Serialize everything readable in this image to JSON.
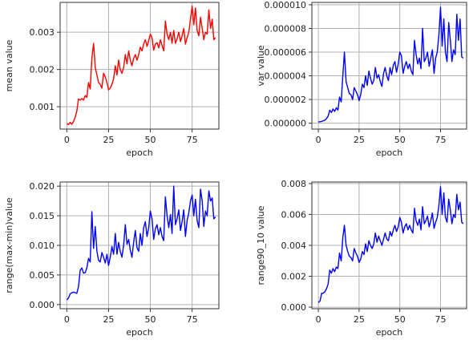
{
  "chart_data": [
    {
      "type": "line",
      "xlabel": "epoch",
      "ylabel": "mean value",
      "xlim": [
        -4,
        91
      ],
      "ylim": [
        0.0004,
        0.0038
      ],
      "xticks": [
        0,
        25,
        50,
        75
      ],
      "yticks": [
        0.001,
        0.002,
        0.003
      ],
      "ytick_labels": [
        "0.001",
        "0.002",
        "0.003"
      ],
      "grid": true,
      "color": "#ff0000",
      "series": [
        {
          "x": [
            0,
            1,
            2,
            3,
            4,
            5,
            6,
            7,
            8,
            9,
            10,
            11,
            12,
            13,
            14,
            15,
            16,
            17,
            18,
            19,
            20,
            21,
            22,
            23,
            24,
            25,
            26,
            27,
            28,
            29,
            30,
            31,
            32,
            33,
            34,
            35,
            36,
            37,
            38,
            39,
            40,
            41,
            42,
            43,
            44,
            45,
            46,
            47,
            48,
            49,
            50,
            51,
            52,
            53,
            54,
            55,
            56,
            57,
            58,
            59,
            60,
            61,
            62,
            63,
            64,
            65,
            66,
            67,
            68,
            69,
            70,
            71,
            72,
            73,
            74,
            75,
            76,
            77,
            78,
            79,
            80,
            81,
            82,
            83,
            84,
            85,
            86,
            87,
            88,
            89
          ],
          "values": [
            0.00055,
            0.00052,
            0.00058,
            0.00053,
            0.0006,
            0.00072,
            0.00088,
            0.00121,
            0.00118,
            0.00122,
            0.00118,
            0.0013,
            0.00125,
            0.00165,
            0.00148,
            0.0023,
            0.0027,
            0.00205,
            0.00185,
            0.00165,
            0.0016,
            0.0015,
            0.0019,
            0.0018,
            0.00165,
            0.00145,
            0.0015,
            0.0016,
            0.00175,
            0.0021,
            0.00185,
            0.00225,
            0.002,
            0.0019,
            0.00205,
            0.0024,
            0.00215,
            0.0025,
            0.00225,
            0.0021,
            0.0023,
            0.0024,
            0.00225,
            0.0024,
            0.0026,
            0.0025,
            0.00268,
            0.0028,
            0.00262,
            0.00278,
            0.00295,
            0.00285,
            0.00252,
            0.00268,
            0.00272,
            0.00258,
            0.0028,
            0.00265,
            0.0025,
            0.0033,
            0.00295,
            0.0028,
            0.003,
            0.0027,
            0.00305,
            0.0027,
            0.00282,
            0.003,
            0.00275,
            0.0029,
            0.0031,
            0.00268,
            0.00285,
            0.003,
            0.00335,
            0.0037,
            0.0032,
            0.00365,
            0.00305,
            0.0029,
            0.0034,
            0.0031,
            0.0028,
            0.003,
            0.00295,
            0.0036,
            0.0031,
            0.00335,
            0.0028,
            0.00285
          ]
        }
      ]
    },
    {
      "type": "line",
      "xlabel": "epoch",
      "ylabel": "var value",
      "xlim": [
        -4,
        91
      ],
      "ylim": [
        -5e-07,
        1.02e-05
      ],
      "xticks": [
        0,
        25,
        50,
        75
      ],
      "yticks": [
        0.0,
        2e-06,
        4e-06,
        6e-06,
        8e-06,
        1e-05
      ],
      "ytick_labels": [
        "0.000000",
        "0.000002",
        "0.000004",
        "0.000006",
        "0.000008",
        "0.000010"
      ],
      "grid": true,
      "color": "#0000ff",
      "series": [
        {
          "x": [
            0,
            1,
            2,
            3,
            4,
            5,
            6,
            7,
            8,
            9,
            10,
            11,
            12,
            13,
            14,
            15,
            16,
            17,
            18,
            19,
            20,
            21,
            22,
            23,
            24,
            25,
            26,
            27,
            28,
            29,
            30,
            31,
            32,
            33,
            34,
            35,
            36,
            37,
            38,
            39,
            40,
            41,
            42,
            43,
            44,
            45,
            46,
            47,
            48,
            49,
            50,
            51,
            52,
            53,
            54,
            55,
            56,
            57,
            58,
            59,
            60,
            61,
            62,
            63,
            64,
            65,
            66,
            67,
            68,
            69,
            70,
            71,
            72,
            73,
            74,
            75,
            76,
            77,
            78,
            79,
            80,
            81,
            82,
            83,
            84,
            85,
            86,
            87,
            88,
            89
          ],
          "values": [
            1e-07,
            1.2e-07,
            1.5e-07,
            2e-07,
            2.5e-07,
            4e-07,
            6e-07,
            1.1e-06,
            9e-07,
            1.2e-06,
            1e-06,
            1.3e-06,
            1.1e-06,
            2.2e-06,
            1.8e-06,
            4e-06,
            6e-06,
            3.5e-06,
            3e-06,
            2.5e-06,
            2.4e-06,
            2e-06,
            3e-06,
            2.7e-06,
            2.4e-06,
            1.9e-06,
            2.4e-06,
            3.3e-06,
            3e-06,
            4e-06,
            3.2e-06,
            4.4e-06,
            3.8e-06,
            3.3e-06,
            3.6e-06,
            4.7e-06,
            3.8e-06,
            4.1e-06,
            3.5e-06,
            3.1e-06,
            4.2e-06,
            4.7e-06,
            4e-06,
            3.6e-06,
            4.7e-06,
            4.1e-06,
            4.9e-06,
            5.2e-06,
            4.3e-06,
            5e-06,
            6e-06,
            5.7e-06,
            4.2e-06,
            4.8e-06,
            5.2e-06,
            4.6e-06,
            5e-06,
            4.4e-06,
            4.1e-06,
            7e-06,
            5.8e-06,
            5e-06,
            5.5e-06,
            4.6e-06,
            8e-06,
            5.2e-06,
            5.5e-06,
            6e-06,
            4.8e-06,
            5.5e-06,
            6.2e-06,
            4.2e-06,
            5.5e-06,
            6e-06,
            7.5e-06,
            9.8e-06,
            6.5e-06,
            8.8e-06,
            6e-06,
            5.2e-06,
            8.5e-06,
            7e-06,
            5.2e-06,
            6.2e-06,
            5.8e-06,
            9.2e-06,
            7e-06,
            8.8e-06,
            5.6e-06,
            5.5e-06
          ]
        }
      ]
    },
    {
      "type": "line",
      "xlabel": "epoch",
      "ylabel": "range(max-min)value",
      "xlim": [
        -4,
        91
      ],
      "ylim": [
        -0.0007,
        0.0207
      ],
      "xticks": [
        0,
        25,
        50,
        75
      ],
      "yticks": [
        0.0,
        0.005,
        0.01,
        0.015,
        0.02
      ],
      "ytick_labels": [
        "0.000",
        "0.005",
        "0.010",
        "0.015",
        "0.020"
      ],
      "grid": true,
      "color": "#0000ff",
      "series": [
        {
          "x": [
            0,
            1,
            2,
            3,
            4,
            5,
            6,
            7,
            8,
            9,
            10,
            11,
            12,
            13,
            14,
            15,
            16,
            17,
            18,
            19,
            20,
            21,
            22,
            23,
            24,
            25,
            26,
            27,
            28,
            29,
            30,
            31,
            32,
            33,
            34,
            35,
            36,
            37,
            38,
            39,
            40,
            41,
            42,
            43,
            44,
            45,
            46,
            47,
            48,
            49,
            50,
            51,
            52,
            53,
            54,
            55,
            56,
            57,
            58,
            59,
            60,
            61,
            62,
            63,
            64,
            65,
            66,
            67,
            68,
            69,
            70,
            71,
            72,
            73,
            74,
            75,
            76,
            77,
            78,
            79,
            80,
            81,
            82,
            83,
            84,
            85,
            86,
            87,
            88,
            89
          ],
          "values": [
            0.0008,
            0.0011,
            0.0018,
            0.002,
            0.0021,
            0.002,
            0.0019,
            0.003,
            0.0058,
            0.0062,
            0.0053,
            0.0054,
            0.0062,
            0.0078,
            0.0072,
            0.0157,
            0.0095,
            0.0132,
            0.009,
            0.0075,
            0.0072,
            0.0088,
            0.008,
            0.007,
            0.0085,
            0.0066,
            0.008,
            0.0098,
            0.0085,
            0.012,
            0.0085,
            0.0105,
            0.009,
            0.008,
            0.01,
            0.0135,
            0.0102,
            0.011,
            0.0092,
            0.008,
            0.0105,
            0.0125,
            0.0096,
            0.009,
            0.012,
            0.01,
            0.013,
            0.014,
            0.0115,
            0.013,
            0.0158,
            0.0145,
            0.011,
            0.0128,
            0.0135,
            0.0118,
            0.013,
            0.0115,
            0.0108,
            0.0182,
            0.015,
            0.013,
            0.0152,
            0.012,
            0.02,
            0.0135,
            0.0145,
            0.016,
            0.0125,
            0.014,
            0.016,
            0.0115,
            0.0142,
            0.0155,
            0.0175,
            0.0185,
            0.015,
            0.0178,
            0.0142,
            0.013,
            0.0195,
            0.0175,
            0.0132,
            0.0158,
            0.015,
            0.0192,
            0.0175,
            0.018,
            0.0145,
            0.0148
          ]
        }
      ]
    },
    {
      "type": "line",
      "xlabel": "epoch",
      "ylabel": "range90_10 value",
      "xlim": [
        -4,
        91
      ],
      "ylim": [
        -0.0001,
        0.0081
      ],
      "xticks": [
        0,
        25,
        50,
        75
      ],
      "yticks": [
        0.0,
        0.002,
        0.004,
        0.006,
        0.008
      ],
      "ytick_labels": [
        "0.000",
        "0.002",
        "0.004",
        "0.006",
        "0.008"
      ],
      "grid": true,
      "color": "#0000ff",
      "series": [
        {
          "x": [
            0,
            1,
            2,
            3,
            4,
            5,
            6,
            7,
            8,
            9,
            10,
            11,
            12,
            13,
            14,
            15,
            16,
            17,
            18,
            19,
            20,
            21,
            22,
            23,
            24,
            25,
            26,
            27,
            28,
            29,
            30,
            31,
            32,
            33,
            34,
            35,
            36,
            37,
            38,
            39,
            40,
            41,
            42,
            43,
            44,
            45,
            46,
            47,
            48,
            49,
            50,
            51,
            52,
            53,
            54,
            55,
            56,
            57,
            58,
            59,
            60,
            61,
            62,
            63,
            64,
            65,
            66,
            67,
            68,
            69,
            70,
            71,
            72,
            73,
            74,
            75,
            76,
            77,
            78,
            79,
            80,
            81,
            82,
            83,
            84,
            85,
            86,
            87,
            88,
            89
          ],
          "values": [
            0.0003,
            0.0004,
            0.0009,
            0.0009,
            0.001,
            0.0012,
            0.0015,
            0.0024,
            0.0022,
            0.0025,
            0.0023,
            0.0026,
            0.0025,
            0.0035,
            0.003,
            0.0045,
            0.0053,
            0.004,
            0.0036,
            0.0033,
            0.0032,
            0.003,
            0.0038,
            0.0035,
            0.0033,
            0.0029,
            0.0031,
            0.0036,
            0.0034,
            0.0041,
            0.0036,
            0.0043,
            0.004,
            0.0038,
            0.0041,
            0.0048,
            0.0042,
            0.0046,
            0.0043,
            0.004,
            0.0044,
            0.0048,
            0.0044,
            0.0043,
            0.0049,
            0.0046,
            0.005,
            0.0053,
            0.0049,
            0.0052,
            0.0058,
            0.0055,
            0.0048,
            0.0052,
            0.0054,
            0.005,
            0.0053,
            0.005,
            0.0048,
            0.0064,
            0.0056,
            0.0053,
            0.0057,
            0.005,
            0.0065,
            0.0054,
            0.0056,
            0.0059,
            0.0052,
            0.0056,
            0.0061,
            0.0051,
            0.0055,
            0.0058,
            0.0066,
            0.0078,
            0.006,
            0.0074,
            0.0058,
            0.0055,
            0.007,
            0.0063,
            0.0054,
            0.006,
            0.0058,
            0.0073,
            0.0063,
            0.0068,
            0.0055,
            0.0054
          ]
        }
      ]
    }
  ]
}
